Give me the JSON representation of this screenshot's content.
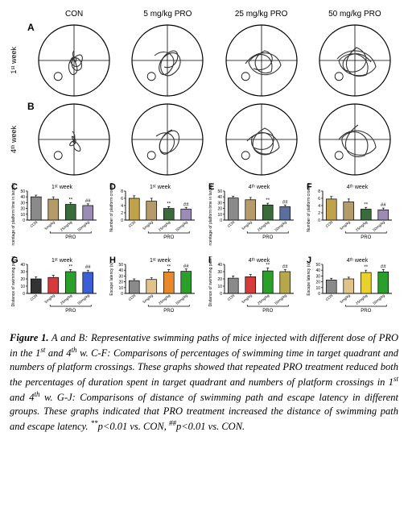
{
  "columns": [
    "CON",
    "5 mg/kg PRO",
    "25 mg/kg PRO",
    "50 mg/kg PRO"
  ],
  "rows": [
    "1ˢᵗ week",
    "4ᵗʰ week"
  ],
  "panel_letters": [
    "A",
    "B"
  ],
  "paths": {
    "A": {
      "stroke": "#333333",
      "stroke_width": 1.1,
      "circle_r": 44,
      "circle_stroke": "#000000",
      "data": [
        "M46,34 C40,40 55,55 48,62 C41,69 35,50 44,44 C53,38 60,55 52,58 C44,61 38,46 50,40 C62,34 55,60 45,52 C35,44 52,36 48,48",
        "M30,40 C44,28 62,42 50,58 C38,74 28,52 44,40 C60,28 70,50 54,62 C38,74 30,46 48,36 C66,26 60,60 42,54",
        "M26,50 C40,30 66,34 70,52 C60,70 34,66 30,48 C42,30 64,40 58,60 C40,68 28,44 50,34 C70,40 54,64 36,56",
        "M24,44 C40,26 68,34 72,54 C60,72 30,66 26,46 C42,28 70,42 60,64 C38,72 24,48 48,30 C72,40 56,68 34,58 C22,44 50,26 66,48"
      ]
    },
    "B": {
      "stroke": "#333333",
      "stroke_width": 1.1,
      "data": [
        "M44,36 C52,44 40,56 50,60 C60,64 48,42 42,50 C36,58 54,52 46,44 C38,36 52,58 44,48",
        "M32,42 C48,30 62,46 50,60 C38,74 28,50 46,38 C64,26 66,56 48,62 C30,68 34,40 52,34",
        "M28,48 C44,30 66,38 68,56 C54,72 30,62 34,44 C48,28 70,44 56,64 C36,70 24,46 50,32 C72,42 58,66 36,56",
        "M26,46 C42,26 70,36 72,56 C58,74 28,64 30,44 C46,26 72,44 58,66 C36,74 22,48 50,28"
      ]
    }
  },
  "bar_charts": {
    "common": {
      "height": 72,
      "axis_color": "#000000",
      "bar_width": 0.6,
      "bar_stroke": "#000000",
      "bar_stroke_width": 0.7,
      "tick_fontsize": 5,
      "ylabel_fontsize": 5,
      "xlabel_fontsize": 4.5,
      "xlabels": [
        "CON",
        "5mg/kg",
        "25mg/kg",
        "50mg/kg"
      ],
      "bracket_label": "PRO",
      "error_cap": 3
    },
    "row1": [
      {
        "letter": "C",
        "title": "1ˢᵗ week",
        "ylabel": "Percentage of platform time in target quadrant (%)",
        "ymax": 50,
        "ystep": 10,
        "colors": [
          "#8a8a8a",
          "#b59a6a",
          "#3a6b3a",
          "#9b8bb5"
        ],
        "values": [
          40,
          36,
          27,
          25
        ],
        "errors": [
          3,
          4,
          3,
          3
        ],
        "sig": [
          "",
          "",
          "**",
          "##"
        ]
      },
      {
        "letter": "D",
        "title": "1ˢᵗ week",
        "ylabel": "Number of platform crossings",
        "ymax": 8,
        "ystep": 2,
        "colors": [
          "#bfa24a",
          "#b59a6a",
          "#3a6b3a",
          "#9b8bb5"
        ],
        "values": [
          6.0,
          5.2,
          3.2,
          3.0
        ],
        "errors": [
          0.7,
          0.8,
          0.5,
          0.5
        ],
        "sig": [
          "",
          "",
          "**",
          "##"
        ]
      },
      {
        "letter": "E",
        "title": "4ᵗʰ week",
        "ylabel": "Percentage of platform time in target quadrant (%)",
        "ymax": 50,
        "ystep": 10,
        "colors": [
          "#8a8a8a",
          "#b59a6a",
          "#3a6b3a",
          "#5a6fa0"
        ],
        "values": [
          38,
          35,
          26,
          23
        ],
        "errors": [
          3,
          4,
          3,
          3
        ],
        "sig": [
          "",
          "",
          "**",
          "##"
        ]
      },
      {
        "letter": "F",
        "title": "4ᵗʰ week",
        "ylabel": "Number of platform crossings",
        "ymax": 8,
        "ystep": 2,
        "colors": [
          "#bfa24a",
          "#b59a6a",
          "#3a6b3a",
          "#9b8bb5"
        ],
        "values": [
          5.8,
          5.0,
          3.0,
          2.8
        ],
        "errors": [
          0.7,
          0.8,
          0.5,
          0.5
        ],
        "sig": [
          "",
          "",
          "**",
          "##"
        ]
      }
    ],
    "row2": [
      {
        "letter": "G",
        "title": "1ˢᵗ week",
        "ylabel": "Distance of swimming path (m)",
        "ymax": 40,
        "ystep": 10,
        "colors": [
          "#333333",
          "#d63a3a",
          "#2aa02a",
          "#3a5fd6"
        ],
        "values": [
          20,
          22,
          30,
          29
        ],
        "errors": [
          3,
          3,
          3,
          3
        ],
        "sig": [
          "",
          "",
          "**",
          "##"
        ]
      },
      {
        "letter": "H",
        "title": "1ˢᵗ week",
        "ylabel": "Escape latency (s)",
        "ymax": 50,
        "ystep": 10,
        "colors": [
          "#8a8a8a",
          "#e0c28a",
          "#e8892b",
          "#2aa02a"
        ],
        "values": [
          22,
          24,
          37,
          38
        ],
        "errors": [
          3,
          3,
          4,
          4
        ],
        "sig": [
          "",
          "",
          "**",
          "##"
        ]
      },
      {
        "letter": "I",
        "title": "4ᵗʰ week",
        "ylabel": "Distance of swimming path (m)",
        "ymax": 40,
        "ystep": 10,
        "colors": [
          "#8a8a8a",
          "#d63a3a",
          "#2aa02a",
          "#b6a84a"
        ],
        "values": [
          21,
          23,
          31,
          30
        ],
        "errors": [
          3,
          3,
          4,
          3
        ],
        "sig": [
          "",
          "",
          "**",
          "##"
        ]
      },
      {
        "letter": "J",
        "title": "4ᵗʰ week",
        "ylabel": "Escape latency (s)",
        "ymax": 50,
        "ystep": 10,
        "colors": [
          "#8a8a8a",
          "#e0c28a",
          "#e8d22b",
          "#2aa02a"
        ],
        "values": [
          23,
          25,
          36,
          37
        ],
        "errors": [
          3,
          3,
          4,
          4
        ],
        "sig": [
          "",
          "",
          "**",
          "##"
        ]
      }
    ]
  },
  "caption": {
    "lead": "Figure 1.",
    "body": " A and B: Representative swimming paths of mice injected with different dose of PRO in the 1",
    "sup1": "st",
    "body2": " and 4",
    "sup2": "th",
    "body3": " w. C-F: Comparisons of percentages of swimming time in target quadrant and numbers of platform crossings. These graphs showed that repeated PRO treatment reduced both the percentages of duration spent in target quadrant and numbers of platform crossings in 1",
    "sup3": "st",
    "body4": " and 4",
    "sup4": "th",
    "body5": " w. G-J: Comparisons of distance of swimming path and escape latency in different groups. These graphs indicated that PRO treatment increased the distance of swimming path and escape latency. ",
    "sig1": "**",
    "sigtext1": "p<0.01 vs. CON, ",
    "sig2": "##",
    "sigtext2": "p<0.01 vs. CON."
  }
}
